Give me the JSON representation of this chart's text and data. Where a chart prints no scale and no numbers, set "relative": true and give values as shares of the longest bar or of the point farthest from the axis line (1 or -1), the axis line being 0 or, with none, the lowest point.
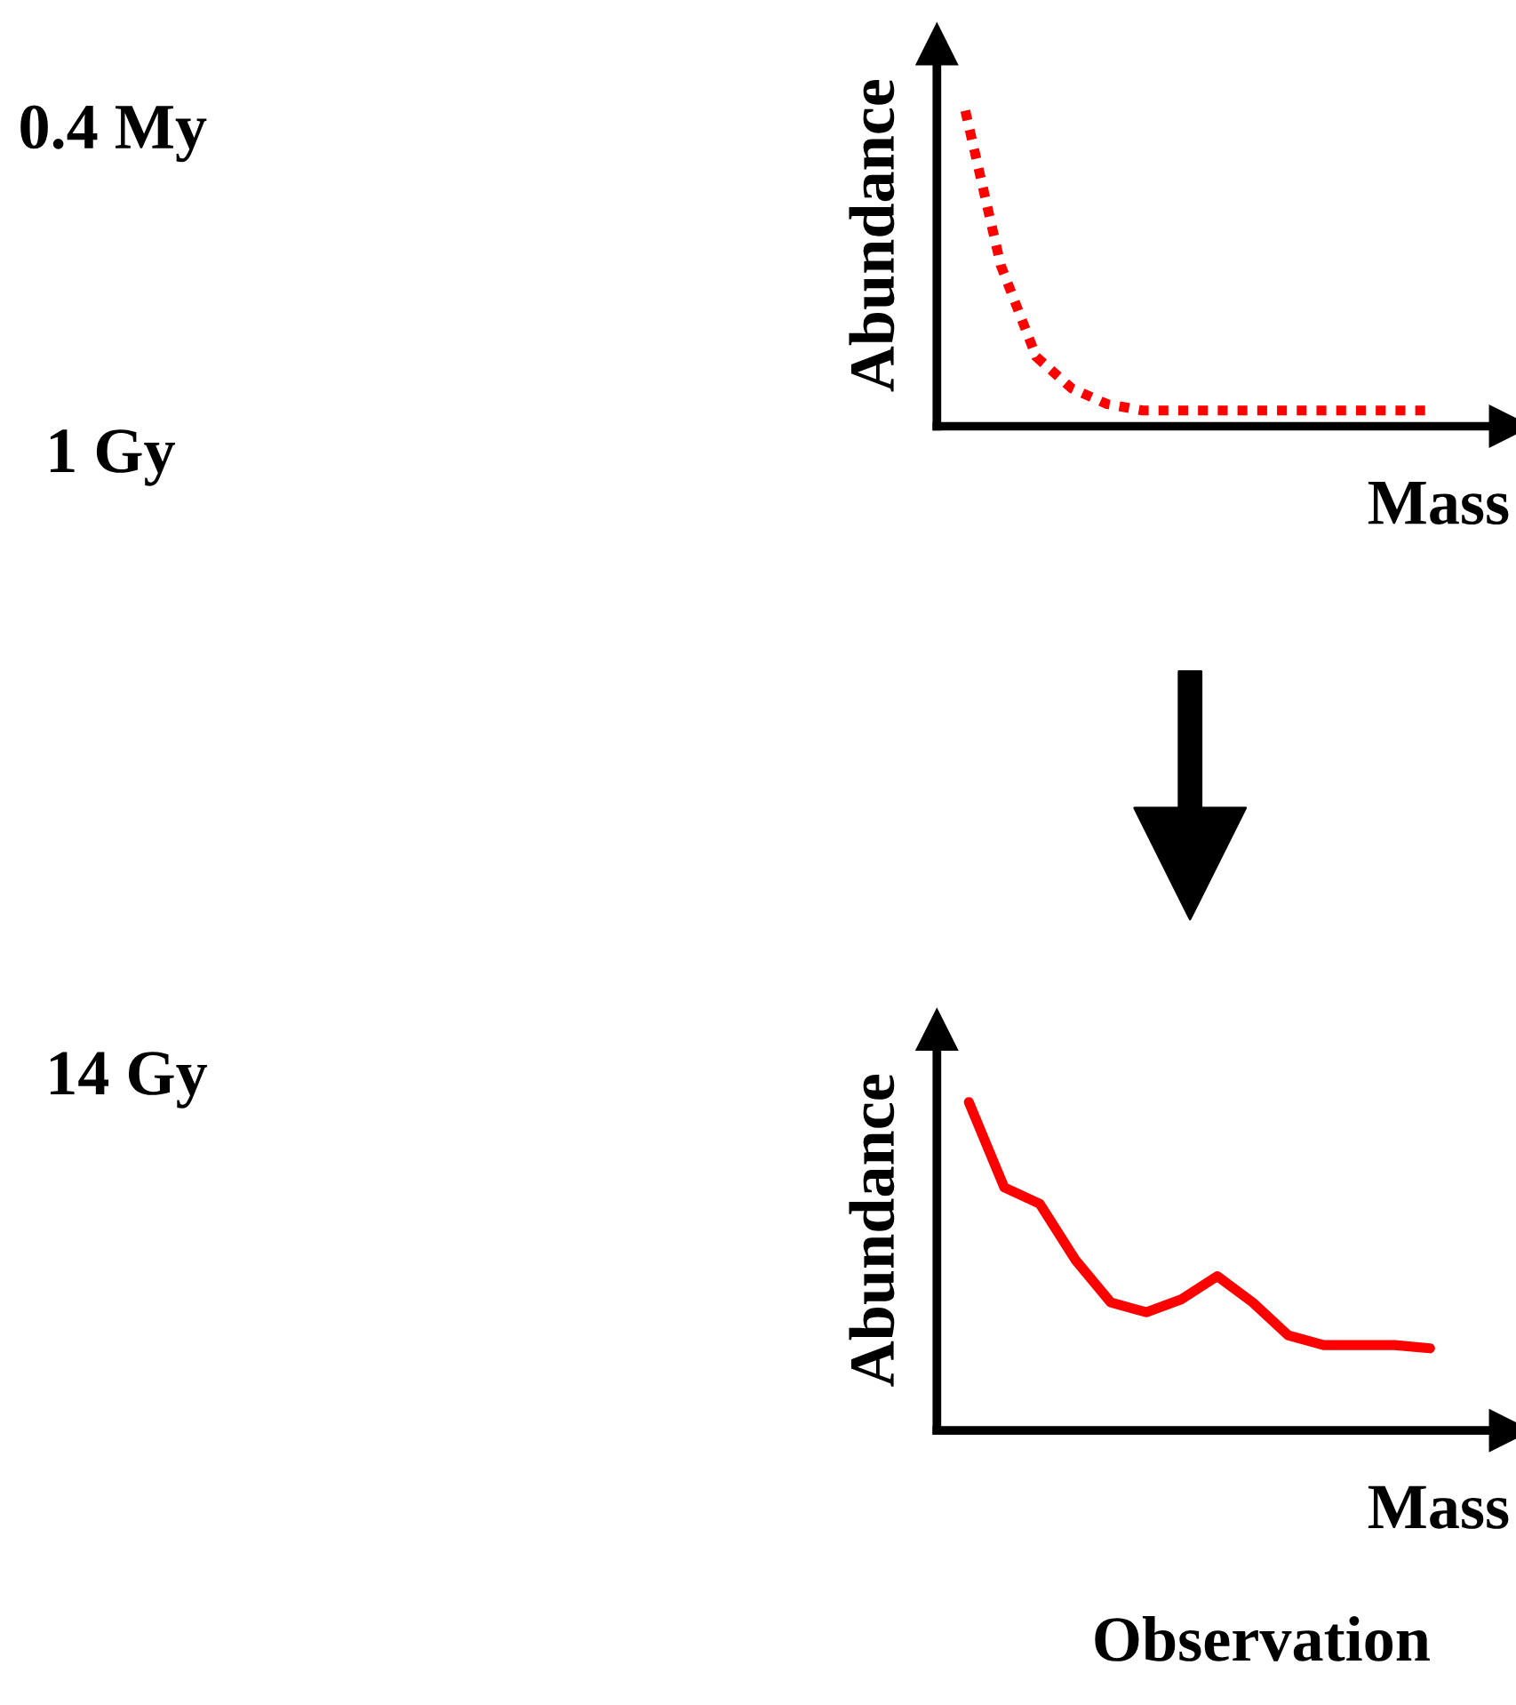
{
  "chart_data": [
    {
      "type": "line",
      "xlabel": "Mass",
      "ylabel": "Abundance",
      "relative": true,
      "line_style": "dotted",
      "color": "#ff0000",
      "categories": [
        null,
        null,
        null,
        null,
        null,
        null,
        null,
        null,
        null,
        null,
        null,
        null,
        null,
        null
      ],
      "values": [
        1.0,
        0.51,
        0.22,
        0.12,
        0.07,
        0.05,
        0.05,
        0.05,
        0.05,
        0.05,
        0.05,
        0.05,
        0.05,
        0.05
      ],
      "annotations": [
        "0.4 My",
        "1 Gy"
      ]
    },
    {
      "type": "line",
      "xlabel": "Mass",
      "ylabel": "Abundance",
      "relative": true,
      "line_style": "solid",
      "color": "#ff0000",
      "categories": [
        null,
        null,
        null,
        null,
        null,
        null,
        null,
        null,
        null,
        null,
        null,
        null,
        null,
        null
      ],
      "values": [
        1.0,
        0.74,
        0.69,
        0.52,
        0.39,
        0.36,
        0.4,
        0.47,
        0.39,
        0.29,
        0.26,
        0.26,
        0.26,
        0.25
      ],
      "annotations": [
        "14 Gy",
        "Observation"
      ]
    }
  ]
}
